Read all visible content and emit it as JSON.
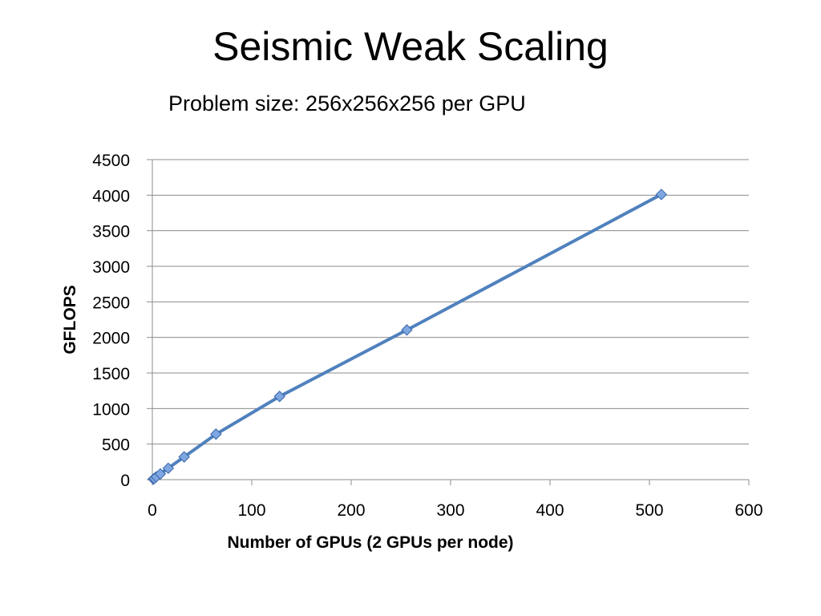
{
  "slide": {
    "title": "Seismic Weak Scaling",
    "subtitle": "Problem size: 256x256x256 per GPU"
  },
  "chart_data": {
    "type": "scatter",
    "title": "",
    "xlabel": "Number of GPUs  (2 GPUs per node)",
    "ylabel": "GFLOPS",
    "xlim": [
      0,
      600
    ],
    "ylim": [
      0,
      4500
    ],
    "xticks": [
      0,
      100,
      200,
      300,
      400,
      500,
      600
    ],
    "yticks": [
      0,
      500,
      1000,
      1500,
      2000,
      2500,
      3000,
      3500,
      4000,
      4500
    ],
    "grid": "horizontal",
    "legend": "none",
    "series": [
      {
        "color": "#4F81BD",
        "marker_color": "#7EA6E0",
        "x": [
          1,
          2,
          4,
          8,
          16,
          32,
          64,
          128,
          256,
          512
        ],
        "y": [
          8,
          16,
          40,
          80,
          160,
          320,
          640,
          1170,
          2105,
          4010
        ]
      }
    ]
  }
}
